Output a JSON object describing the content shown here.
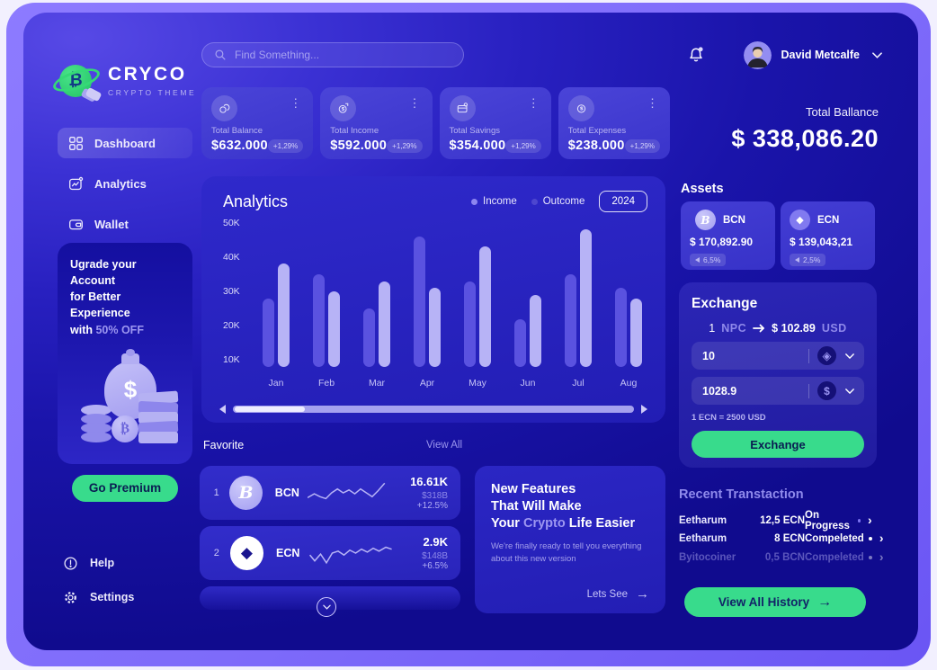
{
  "brand": {
    "name": "CRYCO",
    "tagline": "CRYPTO THEME"
  },
  "search": {
    "placeholder": "Find Something..."
  },
  "sidebar": {
    "items": [
      {
        "label": "Dashboard"
      },
      {
        "label": "Analytics"
      },
      {
        "label": "Wallet"
      }
    ],
    "promo": {
      "line1": "Ugrade your Account",
      "line2": "for Better Experience",
      "line3_prefix": "with ",
      "line3_highlight": "50% OFF",
      "cta": "Go Premium"
    },
    "footer": [
      {
        "label": "Help"
      },
      {
        "label": "Settings"
      }
    ]
  },
  "stats": {
    "cards": [
      {
        "label": "Total Balance",
        "value": "$632.000",
        "badge": "+1,29%",
        "icon": "coins-icon"
      },
      {
        "label": "Total Income",
        "value": "$592.000",
        "badge": "+1,29%",
        "icon": "dollar-circle-icon"
      },
      {
        "label": "Total Savings",
        "value": "$354.000",
        "badge": "+1,29%",
        "icon": "credit-card-icon"
      },
      {
        "label": "Total Expenses",
        "value": "$238.000",
        "badge": "+1,29%",
        "icon": "coin-dollar-icon"
      }
    ]
  },
  "analytics": {
    "title": "Analytics",
    "legend": [
      {
        "label": "Income",
        "color": "#8d86f0"
      },
      {
        "label": "Outcome",
        "color": "#4d46cf"
      }
    ],
    "year": "2024"
  },
  "chart_data": {
    "type": "bar",
    "title": "Analytics",
    "categories": [
      "Jan",
      "Feb",
      "Mar",
      "Apr",
      "May",
      "Jun",
      "Jul",
      "Aug"
    ],
    "series": [
      {
        "name": "Outcome",
        "color": "#5a52e0",
        "values": [
          28,
          35,
          25,
          46,
          33,
          22,
          35,
          31
        ]
      },
      {
        "name": "Income",
        "color": "#b7b3f6",
        "values": [
          38,
          30,
          33,
          31,
          43,
          29,
          48,
          28
        ]
      }
    ],
    "unit": "K",
    "yticks": [
      {
        "label": "10K",
        "value": 10
      },
      {
        "label": "20K",
        "value": 20
      },
      {
        "label": "30K",
        "value": 30
      },
      {
        "label": "40K",
        "value": 40
      },
      {
        "label": "50K",
        "value": 50
      }
    ],
    "ylim": [
      8,
      52
    ],
    "xlabel": "",
    "ylabel": "",
    "grid": false,
    "legend_position": "top-right"
  },
  "favorite": {
    "title": "Favorite",
    "view_all": "View All",
    "rows": [
      {
        "rank": "1",
        "symbol": "BCN",
        "value": "16.61K",
        "cap": "$318B ",
        "change": "+12.5%"
      },
      {
        "rank": "2",
        "symbol": "ECN",
        "value": "2.9K",
        "cap": "$148B ",
        "change": "+6.5%"
      }
    ]
  },
  "features": {
    "line1": "New Features",
    "line2": "That Will Make",
    "line3_prefix": "Your ",
    "line3_highlight": "Crypto",
    "line3_suffix": " Life Easier",
    "body": "We're finally ready to tell you everything about this new version",
    "cta": "Lets See"
  },
  "userbar": {
    "name": "David Metcalfe"
  },
  "balance": {
    "label": "Total Ballance",
    "amount": "$ 338,086.20"
  },
  "assets": {
    "title": "Assets",
    "items": [
      {
        "symbol": "BCN",
        "value": "$ 170,892.90",
        "change": "6,5%"
      },
      {
        "symbol": "ECN",
        "value": "$ 139,043,21",
        "change": "2,5%"
      }
    ]
  },
  "exchange": {
    "title": "Exchange",
    "rate_amount": "1",
    "rate_from": "NPC",
    "rate_price": "$ 102.89",
    "rate_currency": "USD",
    "input_crypto": "10",
    "input_fiat": "1028.9",
    "note": "1 ECN = 2500 USD",
    "cta": "Exchange"
  },
  "transactions": {
    "title": "Recent Transtaction",
    "rows": [
      {
        "name": "Eetharum",
        "amount": "12,5 ECN",
        "status": "On Progress"
      },
      {
        "name": "Eetharum",
        "amount": "8 ECN",
        "status": "Compeleted"
      },
      {
        "name": "Byitocoiner",
        "amount": "0,5 BCN",
        "status": "Compeleted"
      }
    ],
    "cta": "View All History"
  },
  "colors": {
    "accent_green": "#38db8c",
    "bar_income": "#b7b3f6",
    "bar_outcome": "#5a52e0",
    "status_progress_dot": "#7d74f2",
    "status_done_dot": "#ffffff",
    "highlight_lavender": "#9d97f1",
    "frame_purple": "#7e6bfa"
  }
}
